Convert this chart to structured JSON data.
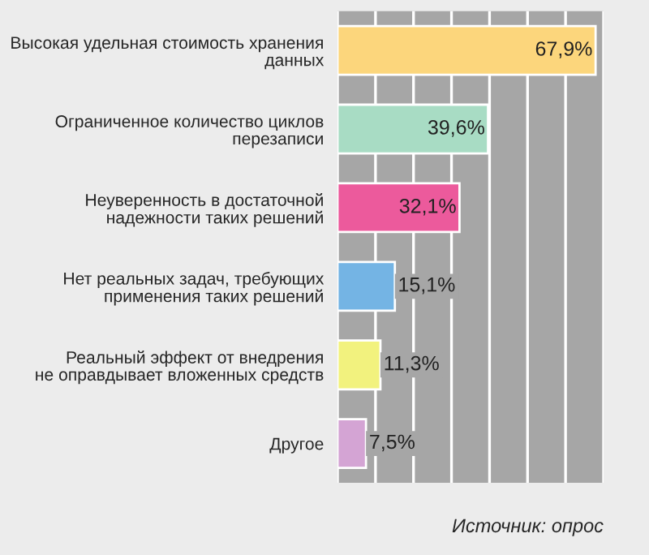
{
  "chart_data": {
    "type": "bar",
    "orientation": "horizontal",
    "categories": [
      "Высокая удельная стоимость хранения\nданных",
      "Ограниченное количество циклов\nперезаписи",
      "Неуверенность в достаточной\nнадежности таких решений",
      "Нет реальных задач, требующих\nприменения таких решений",
      "Реальный эффект от внедрения\nне оправдывает вложенных средств",
      "Другое"
    ],
    "values": [
      67.9,
      39.6,
      32.1,
      15.1,
      11.3,
      7.5
    ],
    "value_labels": [
      "67,9%",
      "39,6%",
      "32,1%",
      "15,1%",
      "11,3%",
      "7,5%"
    ],
    "colors": [
      "#fcd67c",
      "#a8dcc4",
      "#ec5a9c",
      "#74b4e4",
      "#f2f27e",
      "#d4a4d4"
    ],
    "xlim": [
      0,
      70
    ],
    "xticks": [
      {
        "value": 0,
        "label": null
      },
      {
        "value": 10,
        "label": null
      },
      {
        "value": 20,
        "label": null
      },
      {
        "value": 30,
        "label": null
      },
      {
        "value": 40,
        "label": null
      },
      {
        "value": 50,
        "label": null
      },
      {
        "value": 60,
        "label": null
      },
      {
        "value": 70,
        "label": null
      }
    ],
    "grid": "x",
    "tick_labels": "y",
    "annotations": [
      "Источник: опрос"
    ]
  }
}
